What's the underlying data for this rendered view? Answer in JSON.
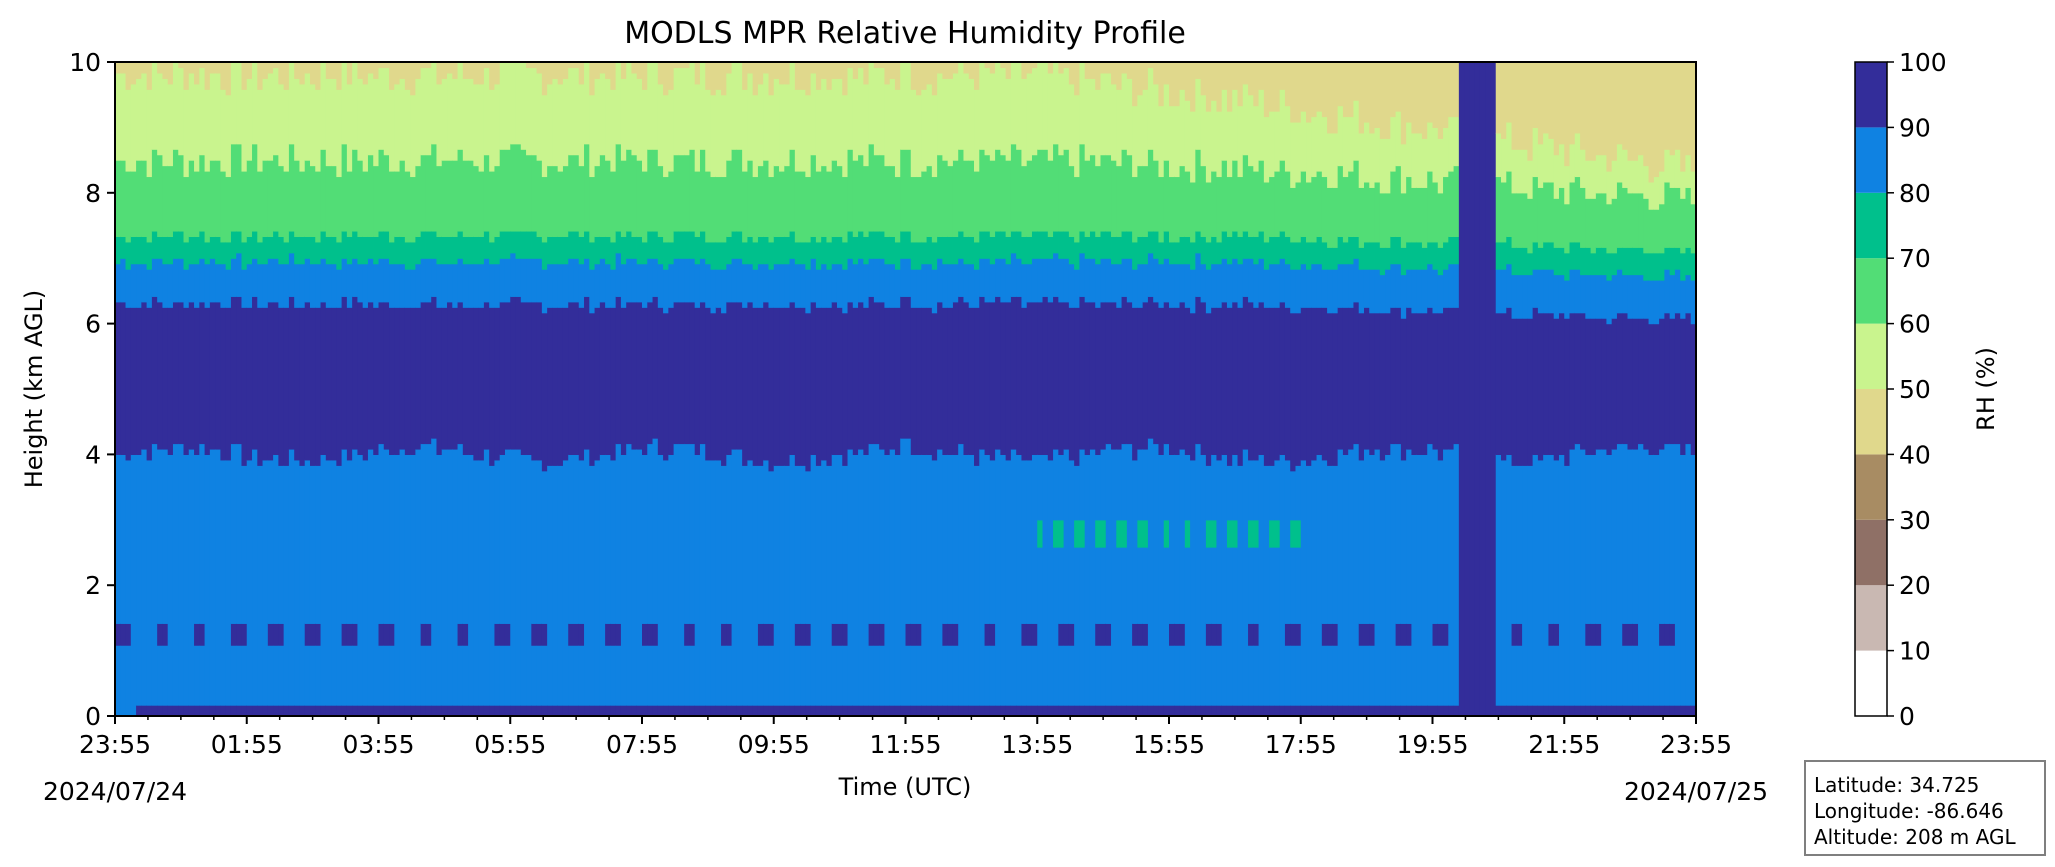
{
  "chart_data": {
    "type": "heatmap",
    "title": "MODLS MPR Relative Humidity Profile",
    "xlabel": "Time (UTC)",
    "ylabel": "Height (km AGL)",
    "x_tick_labels": [
      "23:55",
      "01:55",
      "03:55",
      "05:55",
      "07:55",
      "09:55",
      "11:55",
      "13:55",
      "15:55",
      "17:55",
      "19:55",
      "21:55",
      "23:55"
    ],
    "x_start_date": "2024/07/24",
    "x_end_date": "2024/07/25",
    "y_ticks": [
      0,
      2,
      4,
      6,
      8,
      10
    ],
    "ylim": [
      0,
      10
    ],
    "colorbar": {
      "label": "RH (%)",
      "ticks": [
        0,
        10,
        20,
        30,
        40,
        50,
        60,
        70,
        80,
        90,
        100
      ],
      "levels": [
        {
          "range": [
            0,
            10
          ],
          "color": "#ffffff"
        },
        {
          "range": [
            10,
            20
          ],
          "color": "#c9b8b2"
        },
        {
          "range": [
            20,
            30
          ],
          "color": "#8f7066"
        },
        {
          "range": [
            30,
            40
          ],
          "color": "#a88c63"
        },
        {
          "range": [
            40,
            50
          ],
          "color": "#e0d88c"
        },
        {
          "range": [
            50,
            60
          ],
          "color": "#c9f48e"
        },
        {
          "range": [
            60,
            70
          ],
          "color": "#52dd76"
        },
        {
          "range": [
            70,
            80
          ],
          "color": "#00c08c"
        },
        {
          "range": [
            80,
            90
          ],
          "color": "#0f82e2"
        },
        {
          "range": [
            90,
            100
          ],
          "color": "#332d9a"
        }
      ]
    },
    "layers_approx": [
      {
        "rh": "90-100",
        "height_km": [
          4.0,
          6.4
        ],
        "note": "moist layer most of day"
      },
      {
        "rh": "80-90",
        "height_km": [
          0.2,
          4.0
        ]
      },
      {
        "rh": "80-90",
        "height_km": [
          6.4,
          7.0
        ]
      },
      {
        "rh": "70-80",
        "height_km": [
          7.0,
          7.4
        ]
      },
      {
        "rh": "60-70",
        "height_km": [
          7.4,
          8.5
        ]
      },
      {
        "rh": "50-60",
        "height_km": [
          8.5,
          9.8
        ]
      },
      {
        "rh": "40-50",
        "height_km": [
          9.8,
          10.0
        ]
      },
      {
        "rh": "90-100",
        "time": "20:10-20:40",
        "height_km": [
          0,
          10
        ],
        "note": "saturated column"
      }
    ]
  },
  "info": {
    "latitude": "Latitude: 34.725",
    "longitude": "Longitude: -86.646",
    "altitude": "Altitude: 208 m AGL"
  }
}
